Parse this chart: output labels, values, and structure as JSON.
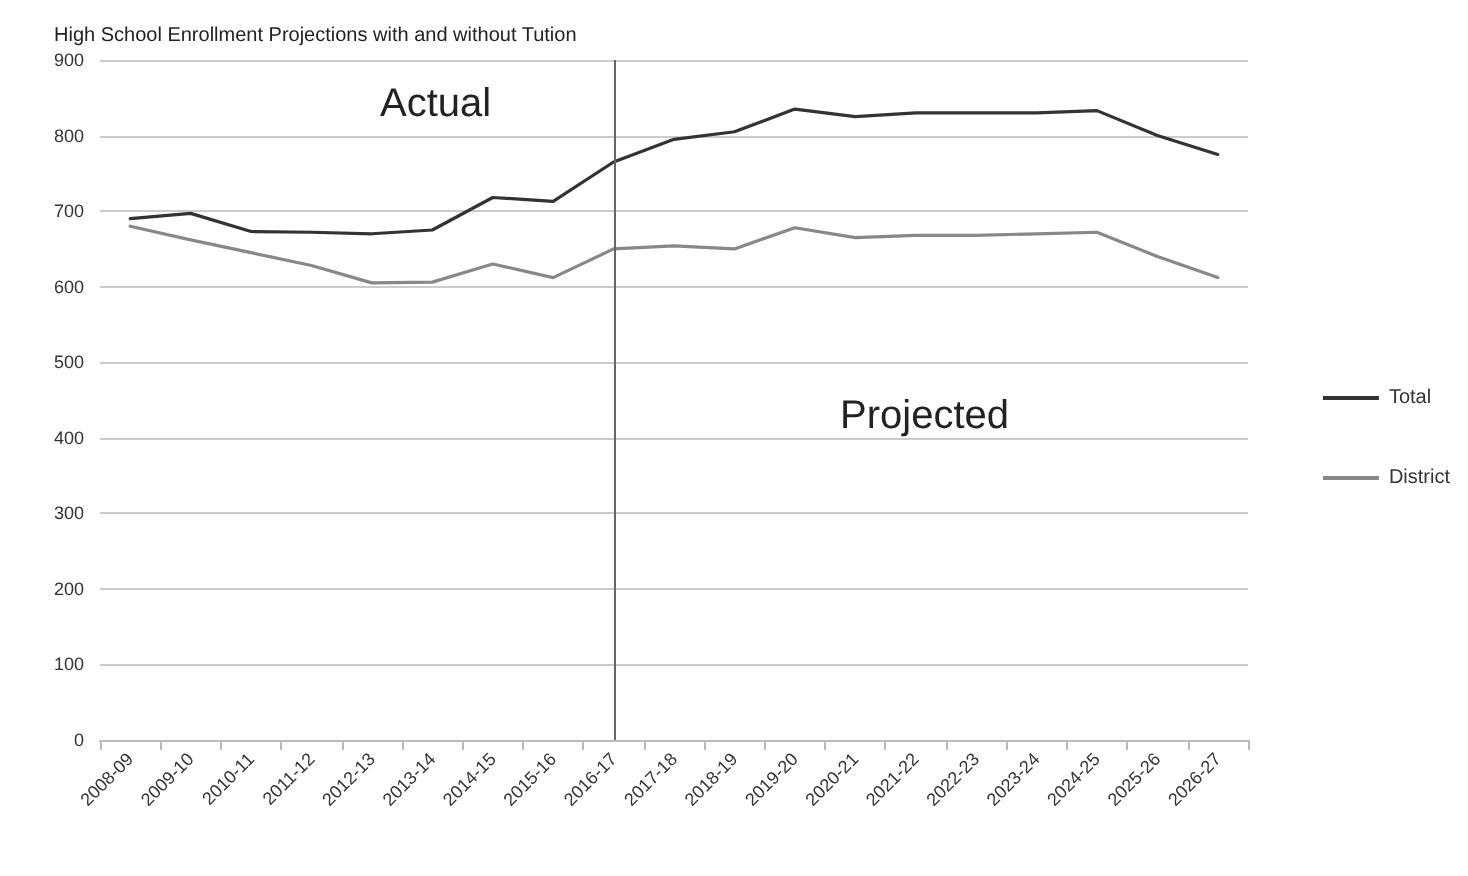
{
  "chart_data": {
    "type": "line",
    "title": "High School Enrollment Projections with and without Tution",
    "categories": [
      "2008-09",
      "2009-10",
      "2010-11",
      "2011-12",
      "2012-13",
      "2013-14",
      "2014-15",
      "2015-16",
      "2016-17",
      "2017-18",
      "2018-19",
      "2019-20",
      "2020-21",
      "2021-22",
      "2022-23",
      "2023-24",
      "2024-25",
      "2025-26",
      "2026-27"
    ],
    "series": [
      {
        "name": "Total",
        "color": "#333333",
        "values": [
          690,
          697,
          673,
          672,
          670,
          675,
          718,
          713,
          765,
          795,
          805,
          835,
          825,
          830,
          830,
          830,
          833,
          800,
          775
        ]
      },
      {
        "name": "District",
        "color": "#888888",
        "values": [
          680,
          662,
          645,
          628,
          605,
          606,
          630,
          612,
          650,
          654,
          650,
          678,
          665,
          668,
          668,
          670,
          672,
          640,
          612
        ]
      }
    ],
    "ylim": [
      0,
      900
    ],
    "yticks": [
      0,
      100,
      200,
      300,
      400,
      500,
      600,
      700,
      800,
      900
    ],
    "ref_lines": [
      {
        "axis": "x",
        "value": "2016-17",
        "color": "#666666"
      }
    ],
    "annotations": [
      "Actual",
      "Projected"
    ],
    "grid": "y",
    "legend": "right",
    "marker": "none",
    "line_style": "solid"
  }
}
